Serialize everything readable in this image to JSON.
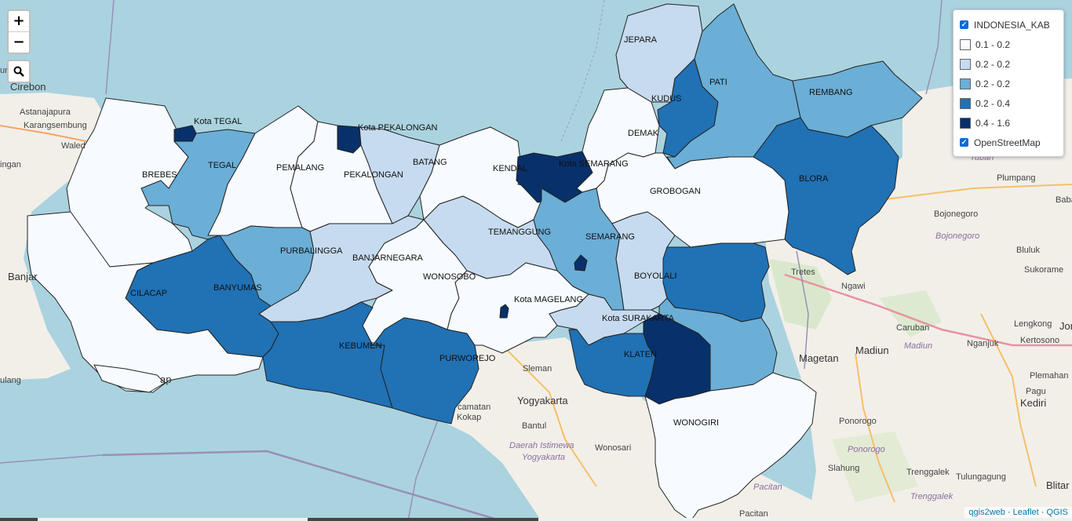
{
  "controls": {
    "zoom_in": "+",
    "zoom_out": "−",
    "search_icon": "search-icon"
  },
  "layers_panel": {
    "main_layer": "INDONESIA_KAB",
    "main_layer_checked": true,
    "legend": [
      {
        "label": "0.1 - 0.2",
        "color": "#f7fbff"
      },
      {
        "label": "0.2 - 0.2",
        "color": "#c6dbef"
      },
      {
        "label": "0.2 - 0.2",
        "color": "#6baed6"
      },
      {
        "label": "0.2 - 0.4",
        "color": "#2171b5"
      },
      {
        "label": "0.4 - 1.6",
        "color": "#08306b"
      }
    ],
    "base_layer": "OpenStreetMap",
    "base_layer_checked": true
  },
  "attribution": {
    "parts": [
      "qgis2web",
      "Leaflet",
      "QGIS"
    ],
    "separator": " · "
  },
  "regions": {
    "brebes": "BREBES",
    "kota_tegal": "Kota TEGAL",
    "tegal": "TEGAL",
    "pemalang": "PEMALANG",
    "kota_pekalongan": "Kota PEKALONGAN",
    "pekalongan": "PEKALONGAN",
    "batang": "BATANG",
    "kendal": "KENDAL",
    "kota_semarang": "Kota SEMARANG",
    "demak": "DEMAK",
    "jepara": "JEPARA",
    "kudus": "KUDUS",
    "pati": "PATI",
    "rembang": "REMBANG",
    "blora": "BLORA",
    "grobogan": "GROBOGAN",
    "semarang": "SEMARANG",
    "temanggung": "TEMANGGUNG",
    "banjarnegara": "BANJARNEGARA",
    "purbalingga": "PURBALINGGA",
    "banyumas": "BANYUMAS",
    "cilacap": "CILACAP",
    "kebumen": "KEBUMEN",
    "wonosobo": "WONOSOBO",
    "kota_magelang": "Kota MAGELANG",
    "purworejo": "PURWOREJO",
    "boyolali": "BOYOLALI",
    "kota_surakarta": "Kota SURAKARTA",
    "klaten": "KLATEN",
    "wonogiri": "WONOGIRI"
  },
  "basemap_places": {
    "cirebon": "Cirebon",
    "astanajapura": "Astanajapura",
    "karangsembung": "Karangsembung",
    "waled": "Waled",
    "ingan": "ingan",
    "banjar": "Banjar",
    "ulang": "ulang",
    "ap": "ap",
    "tuban": "Tuban",
    "plumpang": "Plumpang",
    "babat": "Babat",
    "bojonegoro": "Bojonegoro",
    "bojonegoro_region": "Bojonegoro",
    "tretes": "Tretes",
    "ngawi": "Ngawi",
    "bluluk": "Bluluk",
    "sukorame": "Sukorame",
    "lengkong": "Lengkong",
    "kertosono": "Kertosono",
    "caruban": "Caruban",
    "madiun": "Madiun",
    "madiun_region": "Madiun",
    "nganjuk": "Nganjuk",
    "magetan": "Magetan",
    "plemahan": "Plemahan",
    "pagu": "Pagu",
    "kediri": "Kediri",
    "ponorogo": "Ponorogo",
    "ponorogo_region": "Ponorogo",
    "sleman": "Sleman",
    "yogyakarta": "Yogyakarta",
    "kecamatan_kokap": "camatan",
    "kokap": "Kokap",
    "bantul": "Bantul",
    "diy_line1": "Daerah Istimewa",
    "diy_line2": "Yogyakarta",
    "wonosari": "Wonosari",
    "slahung": "Slahung",
    "trenggalek": "Trenggalek",
    "trenggalek_region": "Trenggalek",
    "tulungagung": "Tulungagung",
    "pacitan": "Pacitan",
    "pacitan_region": "Pacitan",
    "blitar": "Blitar",
    "jon": "Jon",
    "ur": "ur"
  }
}
